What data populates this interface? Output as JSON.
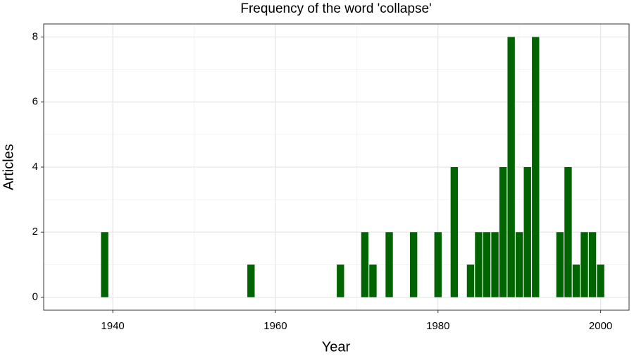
{
  "chart_data": {
    "type": "bar",
    "title": "Frequency of the word 'collapse'",
    "x_label": "Year",
    "y_label": "Articles",
    "x": [
      1939,
      1957,
      1968,
      1971,
      1972,
      1974,
      1977,
      1980,
      1982,
      1984,
      1985,
      1986,
      1987,
      1988,
      1989,
      1990,
      1991,
      1992,
      1995,
      1996,
      1997,
      1998,
      1999,
      2000
    ],
    "values": [
      2,
      1,
      1,
      2,
      1,
      2,
      2,
      2,
      4,
      1,
      2,
      2,
      2,
      4,
      8,
      2,
      4,
      8,
      2,
      4,
      1,
      2,
      2,
      1
    ],
    "color": "#006400",
    "xlim": [
      1931.5,
      2003.5
    ],
    "xticks": [
      1940,
      1960,
      1980,
      2000
    ],
    "x_minor_ticks": [
      1950,
      1970,
      1990
    ],
    "ylim": [
      -0.4,
      8.4
    ],
    "yticks": [
      0,
      2,
      4,
      6,
      8
    ],
    "y_minor_ticks": [
      1,
      3,
      5,
      7
    ],
    "grid": true
  }
}
